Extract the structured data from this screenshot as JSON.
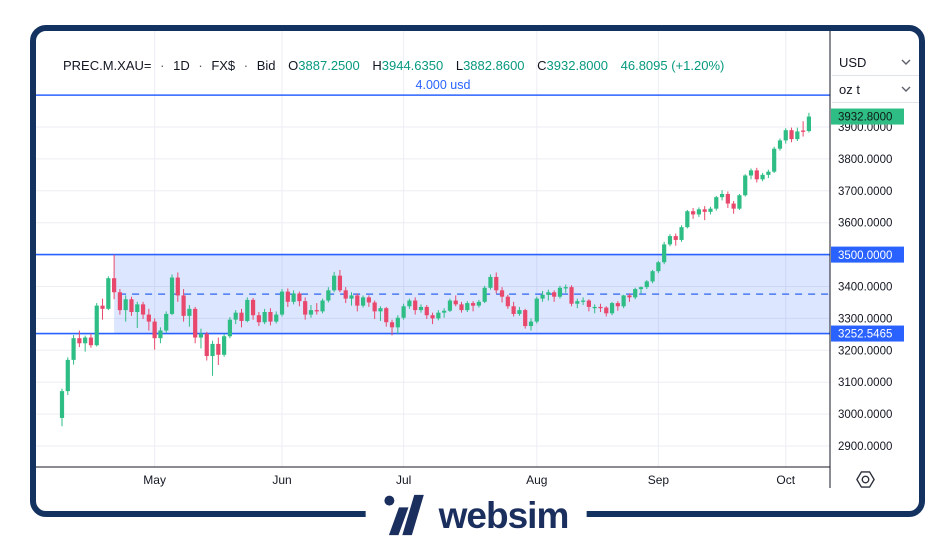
{
  "theme": {
    "frame_color": "#14325f",
    "brand_color": "#1b2f5e",
    "up_color": "#2ebd85",
    "down_color": "#e8486c",
    "line_blue": "#2962ff",
    "band_fill": "rgba(41,98,255,0.16)",
    "dashed_blue": "#4a79f2",
    "text_color": "#131722",
    "grid_color": "#eceef4",
    "axis_line_color": "#161a25",
    "legend_value_green": "#089981"
  },
  "legend": {
    "symbol": "PREC.M.XAU=",
    "separator": "·",
    "interval": "1D",
    "source": "FX$",
    "price_type": "Bid",
    "open_label": "O",
    "open": "3887.2500",
    "high_label": "H",
    "high": "3944.6350",
    "low_label": "L",
    "low": "3882.8600",
    "close_label": "C",
    "close": "3932.8000",
    "change": "46.8095 (+1.20%)"
  },
  "scale": {
    "currency": "USD",
    "unit": "oz t"
  },
  "footer": {
    "brand": "websim"
  },
  "chart_data": {
    "type": "candlestick",
    "symbol": "PREC.M.XAU=",
    "interval": "1D",
    "ylim": [
      2830,
      4200
    ],
    "grid": true,
    "y_ticks": [
      "3900.0000",
      "3800.0000",
      "3700.0000",
      "3600.0000",
      "3500.0000",
      "3400.0000",
      "3300.0000",
      "3200.0000",
      "3100.0000",
      "3000.0000",
      "2900.0000"
    ],
    "months": [
      {
        "label": "May",
        "index": 16
      },
      {
        "label": "Jun",
        "index": 38
      },
      {
        "label": "Jul",
        "index": 59
      },
      {
        "label": "Aug",
        "index": 82
      },
      {
        "label": "Sep",
        "index": 103
      },
      {
        "label": "Oct",
        "index": 125
      }
    ],
    "alert_line": {
      "price": 4000,
      "label": "4.000 usd"
    },
    "band": {
      "top": 3500,
      "bottom": 3252.5465,
      "top_label": "3500.0000",
      "bottom_label": "3252.5465",
      "mid_dashed": true,
      "start_candle_index": 9
    },
    "last_price": {
      "value": 3932.8,
      "label": "3932.8000"
    },
    "candles": [
      [
        2988,
        3080,
        2962,
        3072
      ],
      [
        3072,
        3178,
        3060,
        3170
      ],
      [
        3170,
        3248,
        3155,
        3238
      ],
      [
        3238,
        3262,
        3210,
        3222
      ],
      [
        3222,
        3246,
        3196,
        3240
      ],
      [
        3240,
        3252,
        3208,
        3216
      ],
      [
        3216,
        3348,
        3212,
        3340
      ],
      [
        3340,
        3362,
        3296,
        3330
      ],
      [
        3330,
        3432,
        3326,
        3426
      ],
      [
        3426,
        3500,
        3360,
        3382
      ],
      [
        3382,
        3392,
        3312,
        3326
      ],
      [
        3326,
        3372,
        3290,
        3360
      ],
      [
        3360,
        3368,
        3308,
        3320
      ],
      [
        3320,
        3352,
        3270,
        3344
      ],
      [
        3344,
        3352,
        3298,
        3312
      ],
      [
        3312,
        3330,
        3262,
        3290
      ],
      [
        3290,
        3300,
        3202,
        3238
      ],
      [
        3238,
        3272,
        3222,
        3262
      ],
      [
        3262,
        3322,
        3255,
        3314
      ],
      [
        3314,
        3438,
        3310,
        3428
      ],
      [
        3428,
        3444,
        3352,
        3372
      ],
      [
        3372,
        3392,
        3290,
        3308
      ],
      [
        3308,
        3342,
        3274,
        3330
      ],
      [
        3330,
        3336,
        3222,
        3240
      ],
      [
        3240,
        3268,
        3206,
        3252
      ],
      [
        3252,
        3258,
        3168,
        3182
      ],
      [
        3182,
        3230,
        3120,
        3220
      ],
      [
        3220,
        3240,
        3154,
        3186
      ],
      [
        3186,
        3252,
        3180,
        3244
      ],
      [
        3244,
        3304,
        3238,
        3296
      ],
      [
        3296,
        3326,
        3282,
        3318
      ],
      [
        3318,
        3330,
        3272,
        3292
      ],
      [
        3292,
        3366,
        3288,
        3358
      ],
      [
        3358,
        3364,
        3296,
        3310
      ],
      [
        3310,
        3320,
        3276,
        3288
      ],
      [
        3288,
        3330,
        3282,
        3320
      ],
      [
        3320,
        3332,
        3278,
        3290
      ],
      [
        3290,
        3322,
        3284,
        3312
      ],
      [
        3312,
        3392,
        3306,
        3384
      ],
      [
        3384,
        3394,
        3336,
        3352
      ],
      [
        3352,
        3388,
        3344,
        3378
      ],
      [
        3378,
        3384,
        3338,
        3354
      ],
      [
        3354,
        3366,
        3296,
        3312
      ],
      [
        3312,
        3342,
        3302,
        3326
      ],
      [
        3326,
        3348,
        3312,
        3322
      ],
      [
        3322,
        3362,
        3316,
        3356
      ],
      [
        3356,
        3398,
        3350,
        3388
      ],
      [
        3388,
        3446,
        3382,
        3434
      ],
      [
        3434,
        3452,
        3382,
        3388
      ],
      [
        3388,
        3398,
        3348,
        3362
      ],
      [
        3362,
        3382,
        3340,
        3372
      ],
      [
        3372,
        3378,
        3322,
        3340
      ],
      [
        3340,
        3372,
        3334,
        3366
      ],
      [
        3366,
        3372,
        3336,
        3350
      ],
      [
        3350,
        3356,
        3298,
        3322
      ],
      [
        3322,
        3338,
        3292,
        3332
      ],
      [
        3332,
        3336,
        3274,
        3288
      ],
      [
        3288,
        3296,
        3247,
        3272
      ],
      [
        3272,
        3310,
        3252,
        3302
      ],
      [
        3302,
        3346,
        3296,
        3338
      ],
      [
        3338,
        3362,
        3330,
        3356
      ],
      [
        3356,
        3366,
        3312,
        3326
      ],
      [
        3326,
        3344,
        3318,
        3336
      ],
      [
        3336,
        3342,
        3298,
        3310
      ],
      [
        3310,
        3318,
        3282,
        3300
      ],
      [
        3300,
        3326,
        3294,
        3318
      ],
      [
        3318,
        3332,
        3302,
        3324
      ],
      [
        3324,
        3362,
        3320,
        3356
      ],
      [
        3356,
        3372,
        3338,
        3344
      ],
      [
        3344,
        3352,
        3318,
        3326
      ],
      [
        3326,
        3354,
        3320,
        3348
      ],
      [
        3348,
        3354,
        3322,
        3340
      ],
      [
        3340,
        3358,
        3334,
        3352
      ],
      [
        3352,
        3402,
        3348,
        3396
      ],
      [
        3396,
        3438,
        3390,
        3430
      ],
      [
        3430,
        3444,
        3378,
        3388
      ],
      [
        3388,
        3398,
        3350,
        3368
      ],
      [
        3368,
        3374,
        3330,
        3338
      ],
      [
        3338,
        3352,
        3306,
        3314
      ],
      [
        3314,
        3336,
        3308,
        3326
      ],
      [
        3326,
        3330,
        3268,
        3276
      ],
      [
        3276,
        3300,
        3262,
        3290
      ],
      [
        3290,
        3368,
        3284,
        3362
      ],
      [
        3362,
        3386,
        3352,
        3374
      ],
      [
        3374,
        3390,
        3356,
        3382
      ],
      [
        3382,
        3388,
        3352,
        3368
      ],
      [
        3368,
        3402,
        3362,
        3396
      ],
      [
        3396,
        3406,
        3380,
        3398
      ],
      [
        3398,
        3404,
        3338,
        3346
      ],
      [
        3346,
        3362,
        3332,
        3354
      ],
      [
        3354,
        3366,
        3342,
        3356
      ],
      [
        3356,
        3360,
        3322,
        3336
      ],
      [
        3336,
        3344,
        3316,
        3336
      ],
      [
        3336,
        3346,
        3320,
        3334
      ],
      [
        3334,
        3338,
        3306,
        3316
      ],
      [
        3316,
        3352,
        3310,
        3348
      ],
      [
        3348,
        3354,
        3324,
        3338
      ],
      [
        3338,
        3374,
        3332,
        3372
      ],
      [
        3372,
        3378,
        3352,
        3366
      ],
      [
        3366,
        3396,
        3360,
        3392
      ],
      [
        3392,
        3400,
        3378,
        3398
      ],
      [
        3398,
        3420,
        3392,
        3416
      ],
      [
        3416,
        3452,
        3410,
        3448
      ],
      [
        3448,
        3480,
        3442,
        3476
      ],
      [
        3476,
        3540,
        3470,
        3532
      ],
      [
        3532,
        3564,
        3526,
        3558
      ],
      [
        3558,
        3566,
        3528,
        3546
      ],
      [
        3546,
        3592,
        3540,
        3586
      ],
      [
        3586,
        3640,
        3582,
        3636
      ],
      [
        3636,
        3646,
        3612,
        3626
      ],
      [
        3626,
        3648,
        3618,
        3642
      ],
      [
        3642,
        3652,
        3608,
        3634
      ],
      [
        3634,
        3650,
        3626,
        3644
      ],
      [
        3644,
        3684,
        3638,
        3680
      ],
      [
        3680,
        3702,
        3670,
        3690
      ],
      [
        3690,
        3698,
        3646,
        3660
      ],
      [
        3660,
        3668,
        3628,
        3644
      ],
      [
        3644,
        3690,
        3640,
        3686
      ],
      [
        3686,
        3752,
        3682,
        3748
      ],
      [
        3748,
        3770,
        3736,
        3764
      ],
      [
        3764,
        3772,
        3726,
        3736
      ],
      [
        3736,
        3756,
        3730,
        3750
      ],
      [
        3750,
        3766,
        3740,
        3760
      ],
      [
        3760,
        3838,
        3756,
        3832
      ],
      [
        3832,
        3864,
        3826,
        3858
      ],
      [
        3858,
        3896,
        3848,
        3890
      ],
      [
        3890,
        3898,
        3852,
        3862
      ],
      [
        3862,
        3898,
        3856,
        3886
      ],
      [
        3889,
        3918,
        3870,
        3886
      ],
      [
        3887.25,
        3944.635,
        3882.86,
        3932.8
      ]
    ]
  }
}
